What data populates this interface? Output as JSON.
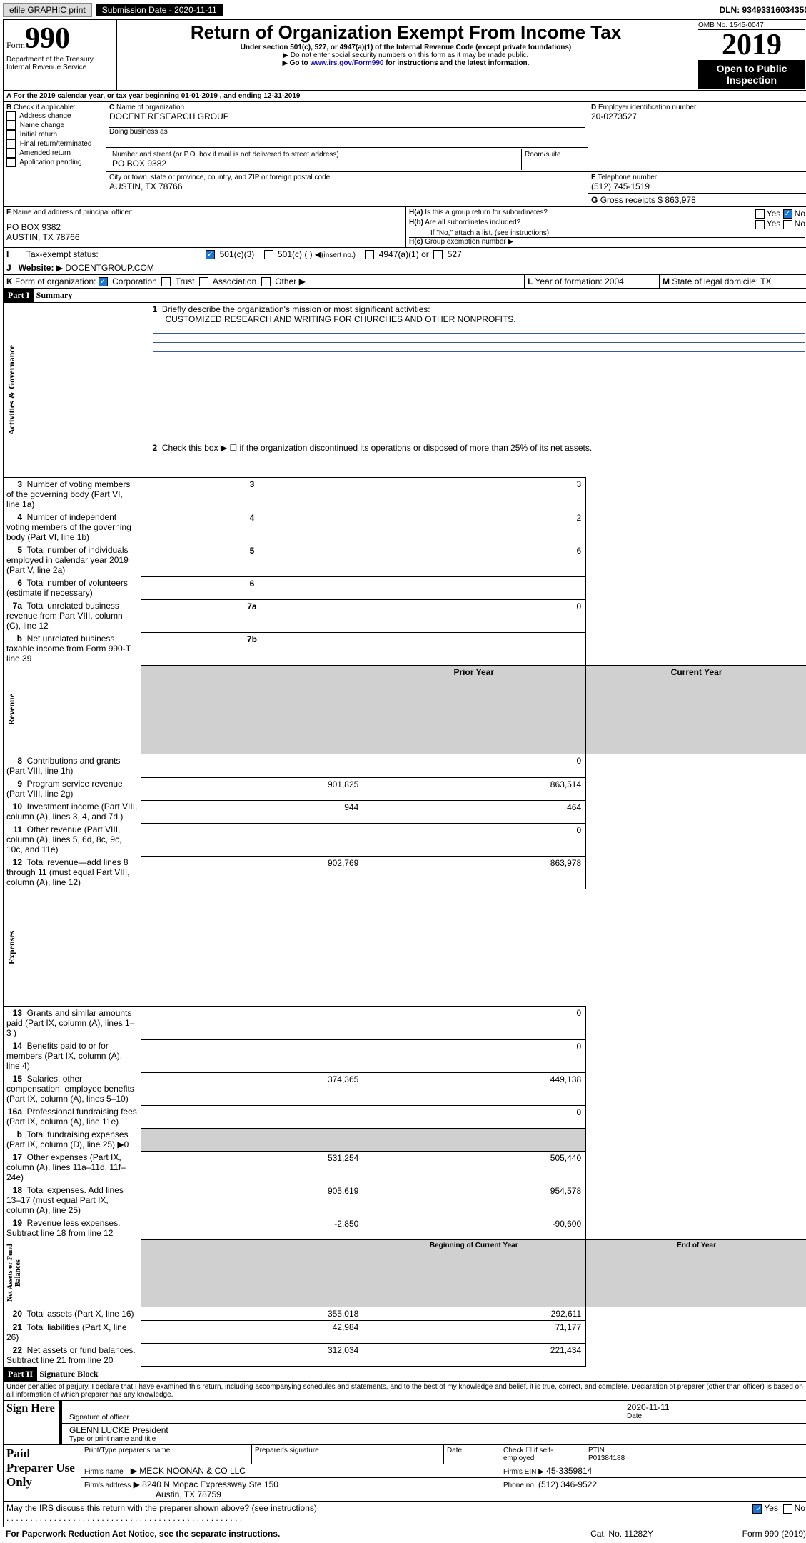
{
  "topbar": {
    "efile": "efile GRAPHIC print",
    "subdate_lbl": "Submission Date - 2020-11-11",
    "dln": "DLN: 93493316034350"
  },
  "header": {
    "form_prefix": "Form",
    "form_no": "990",
    "title": "Return of Organization Exempt From Income Tax",
    "subtitle": "Under section 501(c), 527, or 4947(a)(1) of the Internal Revenue Code (except private foundations)",
    "note1": "Do not enter social security numbers on this form as it may be made public.",
    "note2_pre": "Go to ",
    "note2_link": "www.irs.gov/Form990",
    "note2_post": " for instructions and the latest information.",
    "dept": "Department of the Treasury",
    "irs": "Internal Revenue Service",
    "omb": "OMB No. 1545-0047",
    "year": "2019",
    "open": "Open to Public Inspection"
  },
  "A": {
    "text": "For the 2019 calendar year, or tax year beginning 01-01-2019   , and ending 12-31-2019"
  },
  "B": {
    "label": "Check if applicable:",
    "items": [
      "Address change",
      "Name change",
      "Initial return",
      "Final return/terminated",
      "Amended return",
      "Application pending"
    ]
  },
  "C": {
    "orgname_lbl": "Name of organization",
    "orgname": "DOCENT RESEARCH GROUP",
    "dba_lbl": "Doing business as",
    "dba": "",
    "addr_lbl": "Number and street (or P.O. box if mail is not delivered to street address)",
    "addr": "PO BOX 9382",
    "room_lbl": "Room/suite",
    "city_lbl": "City or town, state or province, country, and ZIP or foreign postal code",
    "city": "AUSTIN, TX  78766"
  },
  "D": {
    "label": "Employer identification number",
    "value": "20-0273527"
  },
  "E": {
    "label": "Telephone number",
    "value": "(512) 745-1519"
  },
  "G": {
    "label": "Gross receipts $",
    "value": "863,978"
  },
  "F": {
    "label": "Name and address of principal officer:",
    "l1": "PO BOX 9382",
    "l2": "AUSTIN, TX  78766"
  },
  "H": {
    "a_lbl": "Is this a group return for subordinates?",
    "b_lbl": "Are all subordinates included?",
    "b_note": "If \"No,\" attach a list. (see instructions)",
    "c_lbl": "Group exemption number",
    "yes": "Yes",
    "no": "No"
  },
  "I": {
    "label": "Tax-exempt status:",
    "i1": "501(c)(3)",
    "i2": "501(c) (  )",
    "i2p": "(insert no.)",
    "i3": "4947(a)(1) or",
    "i4": "527"
  },
  "J": {
    "label": "Website:",
    "value": "DOCENTGROUP.COM"
  },
  "K": {
    "label": "Form of organization:",
    "o1": "Corporation",
    "o2": "Trust",
    "o3": "Association",
    "o4": "Other"
  },
  "L": {
    "label": "Year of formation:",
    "value": "2004"
  },
  "M": {
    "label": "State of legal domicile:",
    "value": "TX"
  },
  "part1": {
    "hdr": "Part I",
    "title": "Summary",
    "vlabel": "Activities & Governance"
  },
  "p1": {
    "l1_lbl": "Briefly describe the organization's mission or most significant activities:",
    "l1_val": "CUSTOMIZED RESEARCH AND WRITING FOR CHURCHES AND OTHER NONPROFITS.",
    "l2": "Check this box ▶ ☐  if the organization discontinued its operations or disposed of more than 25% of its net assets.",
    "rows": [
      {
        "n": "3",
        "t": "Number of voting members of the governing body (Part VI, line 1a)",
        "c": "3",
        "v": "3"
      },
      {
        "n": "4",
        "t": "Number of independent voting members of the governing body (Part VI, line 1b)",
        "c": "4",
        "v": "2"
      },
      {
        "n": "5",
        "t": "Total number of individuals employed in calendar year 2019 (Part V, line 2a)",
        "c": "5",
        "v": "6"
      },
      {
        "n": "6",
        "t": "Total number of volunteers (estimate if necessary)",
        "c": "6",
        "v": ""
      },
      {
        "n": "7a",
        "t": "Total unrelated business revenue from Part VIII, column (C), line 12",
        "c": "7a",
        "v": "0"
      },
      {
        "n": "b",
        "t": "Net unrelated business taxable income from Form 990-T, line 39",
        "c": "7b",
        "v": ""
      }
    ]
  },
  "rev": {
    "vlabel": "Revenue",
    "h1": "Prior Year",
    "h2": "Current Year",
    "rows": [
      {
        "n": "8",
        "t": "Contributions and grants (Part VIII, line 1h)",
        "p": "",
        "c": "0"
      },
      {
        "n": "9",
        "t": "Program service revenue (Part VIII, line 2g)",
        "p": "901,825",
        "c": "863,514"
      },
      {
        "n": "10",
        "t": "Investment income (Part VIII, column (A), lines 3, 4, and 7d )",
        "p": "944",
        "c": "464"
      },
      {
        "n": "11",
        "t": "Other revenue (Part VIII, column (A), lines 5, 6d, 8c, 9c, 10c, and 11e)",
        "p": "",
        "c": "0"
      },
      {
        "n": "12",
        "t": "Total revenue—add lines 8 through 11 (must equal Part VIII, column (A), line 12)",
        "p": "902,769",
        "c": "863,978"
      }
    ]
  },
  "exp": {
    "vlabel": "Expenses",
    "rows": [
      {
        "n": "13",
        "t": "Grants and similar amounts paid (Part IX, column (A), lines 1–3 )",
        "p": "",
        "c": "0"
      },
      {
        "n": "14",
        "t": "Benefits paid to or for members (Part IX, column (A), line 4)",
        "p": "",
        "c": "0"
      },
      {
        "n": "15",
        "t": "Salaries, other compensation, employee benefits (Part IX, column (A), lines 5–10)",
        "p": "374,365",
        "c": "449,138"
      },
      {
        "n": "16a",
        "t": "Professional fundraising fees (Part IX, column (A), line 11e)",
        "p": "",
        "c": "0"
      },
      {
        "n": "b",
        "t": "Total fundraising expenses (Part IX, column (D), line 25) ▶0",
        "p": "gray",
        "c": "gray"
      },
      {
        "n": "17",
        "t": "Other expenses (Part IX, column (A), lines 11a–11d, 11f–24e)",
        "p": "531,254",
        "c": "505,440"
      },
      {
        "n": "18",
        "t": "Total expenses. Add lines 13–17 (must equal Part IX, column (A), line 25)",
        "p": "905,619",
        "c": "954,578"
      },
      {
        "n": "19",
        "t": "Revenue less expenses. Subtract line 18 from line 12",
        "p": "-2,850",
        "c": "-90,600"
      }
    ]
  },
  "net": {
    "vlabel": "Net Assets or Fund Balances",
    "h1": "Beginning of Current Year",
    "h2": "End of Year",
    "rows": [
      {
        "n": "20",
        "t": "Total assets (Part X, line 16)",
        "p": "355,018",
        "c": "292,611"
      },
      {
        "n": "21",
        "t": "Total liabilities (Part X, line 26)",
        "p": "42,984",
        "c": "71,177"
      },
      {
        "n": "22",
        "t": "Net assets or fund balances. Subtract line 21 from line 20",
        "p": "312,034",
        "c": "221,434"
      }
    ]
  },
  "part2": {
    "hdr": "Part II",
    "title": "Signature Block",
    "decl": "Under penalties of perjury, I declare that I have examined this return, including accompanying schedules and statements, and to the best of my knowledge and belief, it is true, correct, and complete. Declaration of preparer (other than officer) is based on all information of which preparer has any knowledge."
  },
  "sign": {
    "here": "Sign Here",
    "sig_lbl": "Signature of officer",
    "date_lbl": "Date",
    "date": "2020-11-11",
    "name": "GLENN LUCKE  President",
    "name_lbl": "Type or print name and title"
  },
  "paid": {
    "here": "Paid Preparer Use Only",
    "c1": "Print/Type preparer's name",
    "c2": "Preparer's signature",
    "c3": "Date",
    "c4a": "Check ☐ if self-employed",
    "c5": "PTIN",
    "ptin": "P01384188",
    "firm_lbl": "Firm's name",
    "firm": "MECK NOONAN & CO LLC",
    "ein_lbl": "Firm's EIN ▶",
    "ein": "45-3359814",
    "addr_lbl": "Firm's address",
    "addr1": "8240 N Mopac Expressway Ste 150",
    "addr2": "Austin, TX  78759",
    "ph_lbl": "Phone no.",
    "ph": "(512) 346-9522"
  },
  "foot": {
    "q": "May the IRS discuss this return with the preparer shown above? (see instructions)",
    "pra": "For Paperwork Reduction Act Notice, see the separate instructions.",
    "cat": "Cat. No. 11282Y",
    "form": "Form 990 (2019)"
  }
}
